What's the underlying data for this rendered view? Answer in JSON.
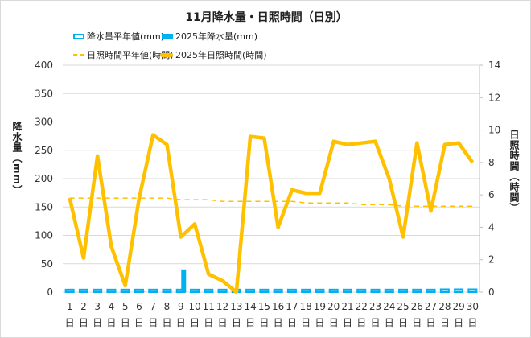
{
  "chart_data": {
    "type": "bar+line",
    "title": "11月降水量・日照時間（日別）",
    "categories": [
      "1",
      "2",
      "3",
      "4",
      "5",
      "6",
      "7",
      "8",
      "9",
      "10",
      "11",
      "12",
      "13",
      "14",
      "15",
      "16",
      "17",
      "18",
      "19",
      "20",
      "21",
      "22",
      "23",
      "24",
      "25",
      "26",
      "27",
      "28",
      "29",
      "30"
    ],
    "category_suffix": "日",
    "ylabel_left": "降水量（mm）",
    "ylabel_right": "日照時間（時間）",
    "ylim_left": [
      0,
      400
    ],
    "yticks_left": [
      0,
      50,
      100,
      150,
      200,
      250,
      300,
      350,
      400
    ],
    "ylim_right": [
      0,
      14
    ],
    "yticks_right": [
      0,
      2,
      4,
      6,
      8,
      10,
      12,
      14
    ],
    "grid": true,
    "legend_position": "top",
    "series": [
      {
        "name": "降水量平年値(mm)",
        "type": "bar-outline",
        "axis": "left",
        "color": "#00b0f0",
        "values": [
          4.5,
          4.5,
          4.5,
          4.5,
          4.5,
          4.5,
          4.5,
          4.5,
          4.5,
          4.5,
          4.5,
          4.5,
          4.5,
          4.5,
          4.5,
          4.5,
          4.5,
          4.5,
          4.5,
          4.5,
          4.5,
          4.5,
          4.5,
          4.5,
          4.5,
          4.5,
          4.5,
          5,
          5,
          5
        ]
      },
      {
        "name": "2025年降水量(mm)",
        "type": "bar",
        "axis": "left",
        "color": "#00b0f0",
        "values": [
          0,
          0,
          0,
          0,
          0,
          1.5,
          0,
          0,
          40,
          0,
          0,
          0,
          0,
          0,
          0,
          0,
          0,
          0,
          0,
          0,
          0,
          0,
          0,
          0,
          0.5,
          0,
          0,
          0,
          0,
          0
        ]
      },
      {
        "name": "日照時間平年値(時間)",
        "type": "line-dashed",
        "axis": "right",
        "color": "#ffc000",
        "values": [
          5.8,
          5.8,
          5.8,
          5.8,
          5.8,
          5.8,
          5.8,
          5.8,
          5.7,
          5.7,
          5.7,
          5.6,
          5.6,
          5.6,
          5.6,
          5.6,
          5.6,
          5.5,
          5.5,
          5.5,
          5.5,
          5.4,
          5.4,
          5.4,
          5.3,
          5.3,
          5.3,
          5.3,
          5.3,
          5.3
        ]
      },
      {
        "name": "2025年日照時間(時間)",
        "type": "line",
        "axis": "right",
        "color": "#ffc000",
        "values": [
          5.8,
          2.1,
          8.4,
          2.8,
          0.4,
          5.8,
          9.7,
          9.1,
          3.4,
          4.2,
          1.1,
          0.7,
          0,
          9.6,
          9.5,
          4.0,
          6.3,
          6.1,
          6.1,
          9.3,
          9.1,
          9.2,
          9.3,
          7.0,
          3.4,
          9.2,
          5.0,
          9.1,
          9.2,
          8.0
        ]
      }
    ]
  }
}
